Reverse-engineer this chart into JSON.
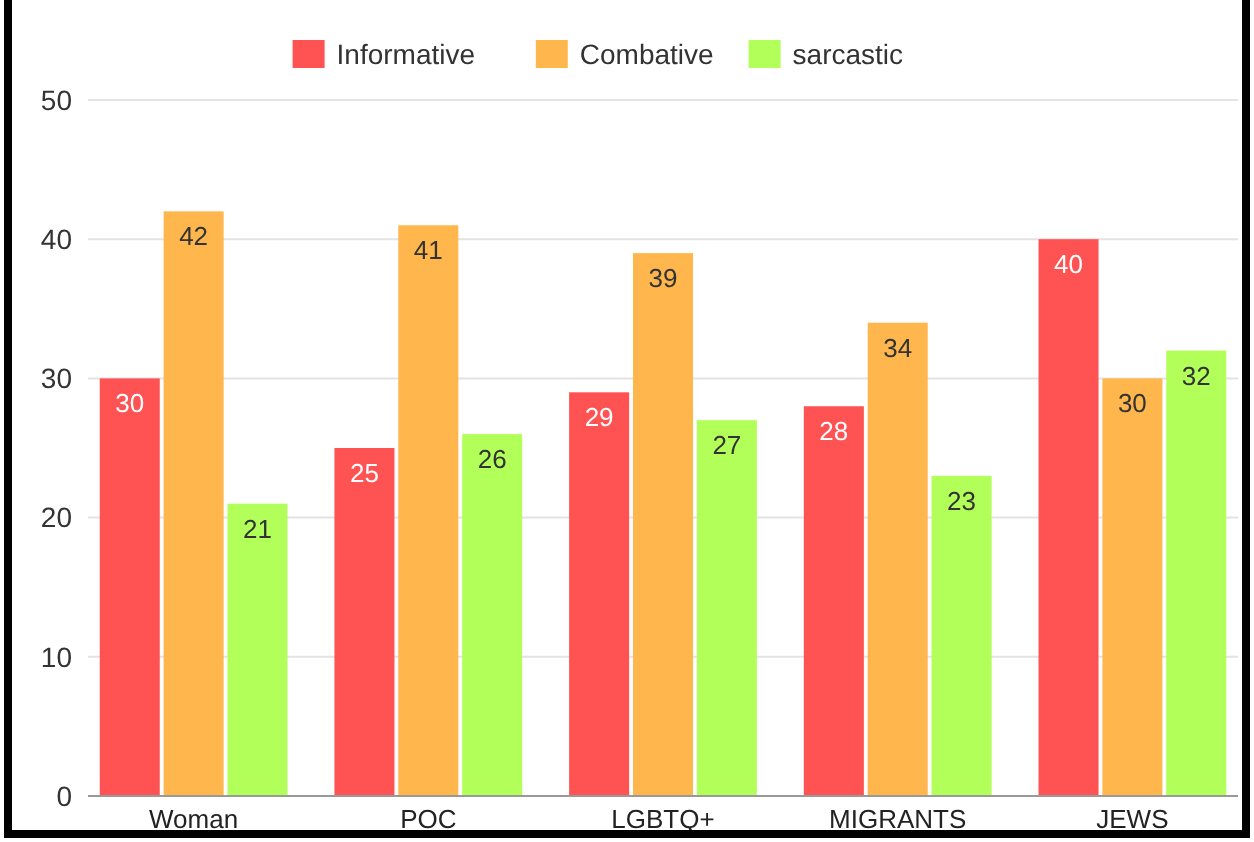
{
  "chart_data": {
    "type": "bar",
    "categories": [
      "Woman",
      "POC",
      "LGBTQ+",
      "MIGRANTS",
      "JEWS"
    ],
    "series": [
      {
        "name": "Informative",
        "color": "#ff5252",
        "values": [
          30,
          25,
          29,
          28,
          40
        ]
      },
      {
        "name": "Combative",
        "color": "#ffb74d",
        "values": [
          42,
          41,
          39,
          34,
          30
        ]
      },
      {
        "name": "sarcastic",
        "color": "#b2ff59",
        "values": [
          21,
          26,
          27,
          23,
          32
        ]
      }
    ],
    "ylim": [
      0,
      50
    ],
    "yticks": [
      0,
      10,
      20,
      30,
      40,
      50
    ],
    "grid": "y",
    "legend": "top",
    "data_labels": true
  }
}
